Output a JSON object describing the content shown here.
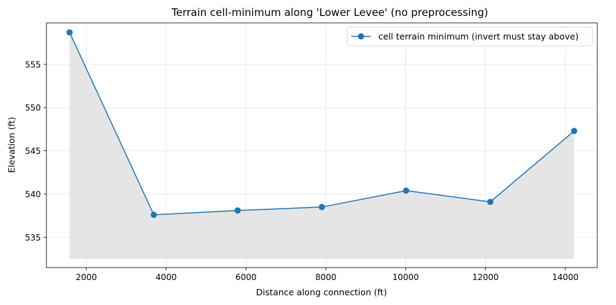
{
  "chart_data": {
    "type": "line",
    "title": "Terrain cell-minimum along 'Lower Levee' (no preprocessing)",
    "xlabel": "Distance along connection (ft)",
    "ylabel": "Elevation (ft)",
    "xlim": [
      1000,
      14800
    ],
    "ylim": [
      531.5,
      559.8
    ],
    "xticks": [
      2000,
      4000,
      6000,
      8000,
      10000,
      12000,
      14000
    ],
    "yticks": [
      535,
      540,
      545,
      550,
      555
    ],
    "grid": true,
    "legend_position": "top-right",
    "fill_base": 532.5,
    "series": [
      {
        "name": "cell terrain minimum (invert must stay above)",
        "color": "#1f77b4",
        "fill_color": "#e5e5e5",
        "x": [
          1580,
          3690,
          5790,
          7900,
          10010,
          12120,
          14220
        ],
        "y": [
          558.7,
          537.6,
          538.1,
          538.5,
          540.4,
          539.1,
          547.3
        ]
      }
    ]
  }
}
